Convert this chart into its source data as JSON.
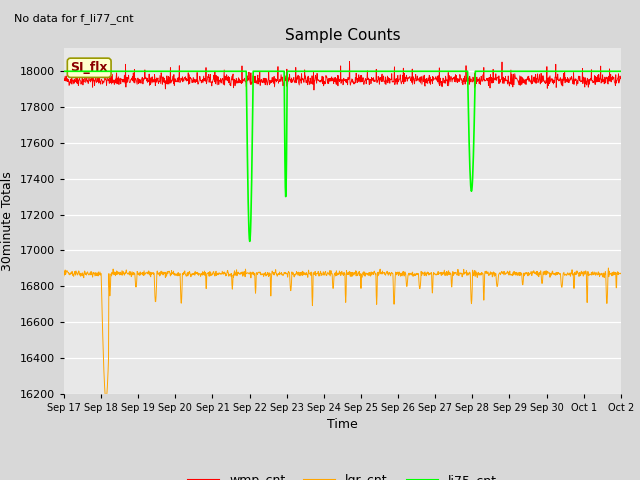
{
  "title": "Sample Counts",
  "top_left_text": "No data for f_li77_cnt",
  "xlabel": "Time",
  "ylabel": "30minute Totals",
  "ylim": [
    16200,
    18130
  ],
  "xlim": [
    0,
    432
  ],
  "bg_color": "#d8d8d8",
  "plot_bg_color": "#e8e8e8",
  "grid_color": "white",
  "annotation_text": "SI_flx",
  "xtick_labels": [
    "Sep 17",
    "Sep 18",
    "Sep 19",
    "Sep 20",
    "Sep 21",
    "Sep 22",
    "Sep 23",
    "Sep 24",
    "Sep 25",
    "Sep 26",
    "Sep 27",
    "Sep 28",
    "Sep 29",
    "Sep 30",
    "Oct 1",
    "Oct 2"
  ],
  "xtick_positions": [
    0,
    28.8,
    57.6,
    86.4,
    115.2,
    144,
    172.8,
    201.6,
    230.4,
    259.2,
    288,
    316.8,
    345.6,
    374.4,
    403.2,
    432
  ],
  "ytick_values": [
    16200,
    16400,
    16600,
    16800,
    17000,
    17200,
    17400,
    17600,
    17800,
    18000
  ],
  "wmp_base": 17950,
  "lgr_base": 16870,
  "li75_base": 18000
}
